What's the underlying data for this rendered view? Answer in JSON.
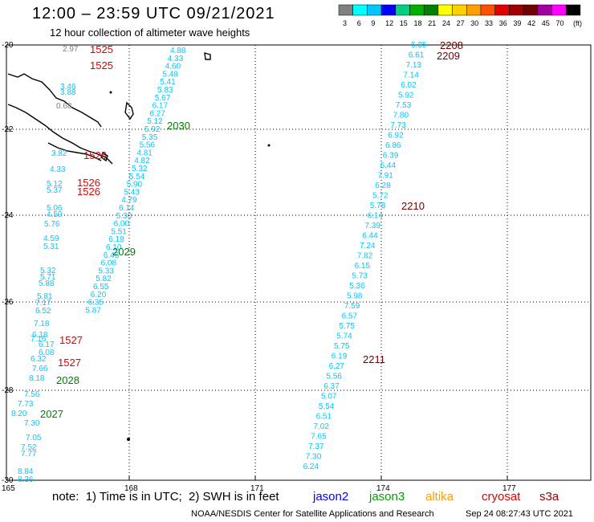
{
  "title": "12:00 – 23:59 UTC 09/21/2021",
  "subtitle": "12 hour collection of altimeter wave heights",
  "legend": {
    "unit": "(ft)",
    "bins": [
      {
        "label": "3",
        "color": "#808080"
      },
      {
        "label": "6",
        "color": "#00ffff"
      },
      {
        "label": "9",
        "color": "#00c8ff"
      },
      {
        "label": "12",
        "color": "#0000ff"
      },
      {
        "label": "15",
        "color": "#00d080"
      },
      {
        "label": "18",
        "color": "#00b000"
      },
      {
        "label": "21",
        "color": "#008000"
      },
      {
        "label": "24",
        "color": "#ffff00"
      },
      {
        "label": "27",
        "color": "#ffd000"
      },
      {
        "label": "30",
        "color": "#ffa000"
      },
      {
        "label": "33",
        "color": "#ff5000"
      },
      {
        "label": "36",
        "color": "#e00000"
      },
      {
        "label": "39",
        "color": "#a00000"
      },
      {
        "label": "42",
        "color": "#700000"
      },
      {
        "label": "45",
        "color": "#a000a0"
      },
      {
        "label": "70",
        "color": "#ff00ff"
      },
      {
        "label": "",
        "color": "#000000"
      }
    ]
  },
  "axes": {
    "lat_labels": [
      "-20",
      "-22",
      "-24",
      "-26",
      "-28",
      "-30"
    ],
    "lon_labels": [
      "165",
      "168",
      "171",
      "174",
      "177"
    ]
  },
  "track_times": [
    {
      "text": "1525",
      "color": "#e00000"
    },
    {
      "text": "1525",
      "color": "#e00000"
    },
    {
      "text": "1526",
      "color": "#e00000"
    },
    {
      "text": "1526",
      "color": "#e00000"
    },
    {
      "text": "1526",
      "color": "#e00000"
    },
    {
      "text": "1527",
      "color": "#e00000"
    },
    {
      "text": "1527",
      "color": "#e00000"
    },
    {
      "text": "2030",
      "color": "#008000"
    },
    {
      "text": "2029",
      "color": "#008000"
    },
    {
      "text": "2028",
      "color": "#008000"
    },
    {
      "text": "2027",
      "color": "#008000"
    },
    {
      "text": "2208",
      "color": "#700000"
    },
    {
      "text": "2209",
      "color": "#700000"
    },
    {
      "text": "2210",
      "color": "#700000"
    },
    {
      "text": "2211",
      "color": "#700000"
    }
  ],
  "swh_west_track": [
    "4.88",
    "4.33",
    "4.60",
    "5.48",
    "5.41",
    "5.83",
    "5.67",
    "6.17",
    "6.27",
    "5.12",
    "5.92",
    "5.35",
    "5.56",
    "4.81",
    "4.82",
    "5.32",
    "5.54",
    "5.90",
    "5.43",
    "4.79",
    "6.14",
    "5.30",
    "6.00",
    "5.51",
    "6.18",
    "6.10",
    "6.46",
    "6.08",
    "5.33",
    "5.82",
    "6.55",
    "6.20",
    "6.35",
    "5.87"
  ],
  "swh_gray": [
    "2.97",
    "0.68"
  ],
  "swh_cyan_misc": [
    "3.46",
    "3.88",
    "3.82",
    "4.33",
    "5.12",
    "5.37",
    "5.06",
    "4.59",
    "5.76",
    "4.59",
    "5.31",
    "5.32",
    "5.71",
    "5.88",
    "5.81",
    "7.17",
    "6.52",
    "7.18",
    "6.18",
    "7.16",
    "6.17",
    "6.08",
    "6.32",
    "7.66",
    "8.18",
    "7.56",
    "7.73",
    "8.20",
    "7.30",
    "7.05",
    "7.52",
    "7.77",
    "8.84",
    "8.36"
  ],
  "swh_east_track": [
    "6.35",
    "6.61",
    "7.13",
    "7.14",
    "6.02",
    "5.92",
    "7.53",
    "7.80",
    "7.73",
    "6.92",
    "6.86",
    "6.39",
    "6.44",
    "7.91",
    "6.28",
    "5.72",
    "5.78",
    "6.14",
    "7.39",
    "6.44",
    "7.24",
    "7.82",
    "6.15",
    "5.73",
    "5.36",
    "5.98",
    "7.59",
    "6.57",
    "5.75",
    "5.74",
    "5.75",
    "6.19",
    "6.27",
    "5.56",
    "6.37",
    "5.07",
    "5.54",
    "6.51",
    "7.02",
    "7.65",
    "7.37",
    "7.30",
    "6.24"
  ],
  "note": {
    "text": "note:  1) Time is in UTC;  2) SWH is in feet",
    "satellites": [
      {
        "name": "jason2",
        "color": "#0000ff"
      },
      {
        "name": "jason3",
        "color": "#00a000"
      },
      {
        "name": "altika",
        "color": "#ffa000"
      },
      {
        "name": "cryosat",
        "color": "#e00000"
      },
      {
        "name": "s3a",
        "color": "#a00000"
      }
    ]
  },
  "footer": {
    "left": "NOAA/NESDIS Center for Satellite Applications and Research",
    "right": "Sep 24 08:27:43 UTC 2021"
  }
}
